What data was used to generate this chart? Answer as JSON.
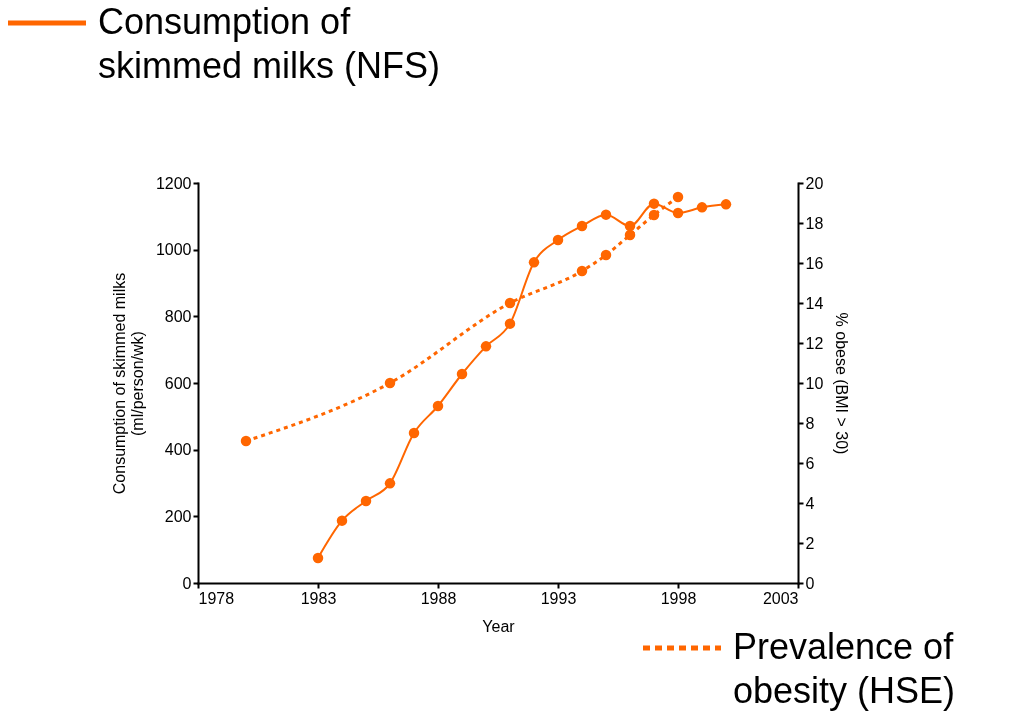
{
  "chart_data": {
    "type": "line",
    "xlabel": "Year",
    "ylabel": "Consumption of skimmed milks\n(ml/person/wk)",
    "y2label": "% obese (BMI > 30)",
    "xlim": [
      1978,
      2003
    ],
    "xticks": [
      1978,
      1983,
      1988,
      1993,
      1998,
      2003
    ],
    "ylim": [
      0,
      1200
    ],
    "yticks": [
      0,
      200,
      400,
      600,
      800,
      1000,
      1200
    ],
    "y2lim": [
      0,
      20
    ],
    "y2ticks": [
      0,
      2,
      4,
      6,
      8,
      10,
      12,
      14,
      16,
      18,
      20
    ],
    "legend": "top left",
    "marker": "circle",
    "grid": false,
    "series": [
      {
        "name": "Consumption of skimmed milks (NFS)",
        "color": "#ff6600",
        "line_style": "solid",
        "x": [
          1983,
          1984,
          1985,
          1986,
          1987,
          1988,
          1989,
          1990,
          1991,
          1992,
          1993,
          1994,
          1995,
          1996,
          1997,
          1998,
          1999,
          2000
        ],
        "values": [
          75,
          187,
          246,
          299,
          450,
          531,
          627,
          710,
          778,
          962,
          1029,
          1071,
          1105,
          1071,
          1138,
          1110,
          1127,
          1136
        ]
      },
      {
        "name": "Prevalence of obesity (HSE)",
        "color": "#ff6600",
        "line_style": "dotted",
        "axis": "y2",
        "x": [
          1980,
          1986,
          1991,
          1994,
          1995,
          1996,
          1997,
          1998
        ],
        "values": [
          7.1,
          10.0,
          14.0,
          15.6,
          16.4,
          17.4,
          18.4,
          19.3
        ]
      }
    ]
  }
}
